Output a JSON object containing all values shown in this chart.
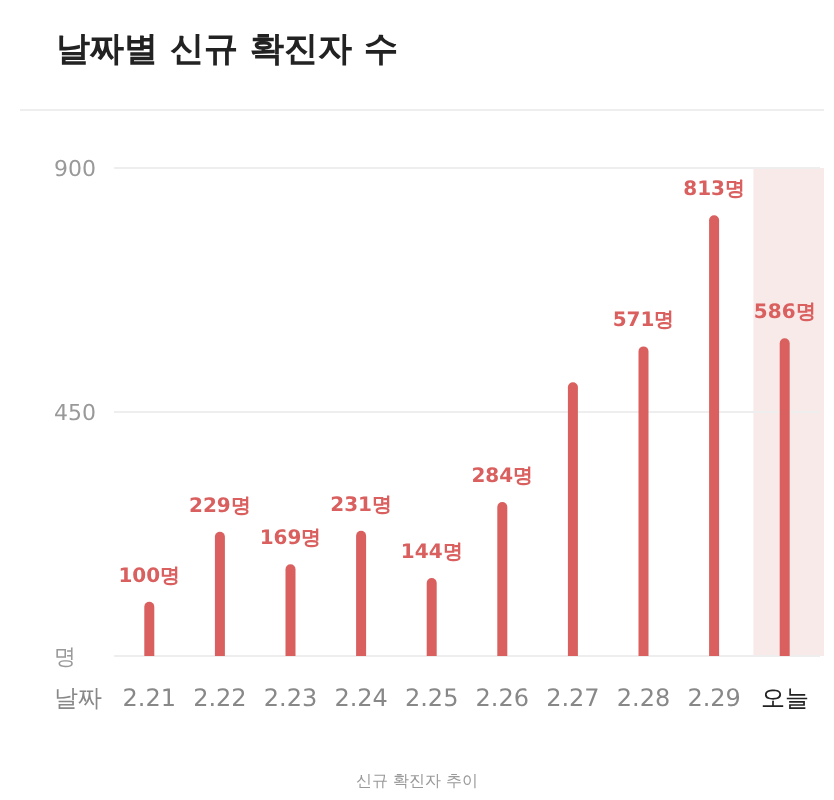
{
  "chart_data": {
    "type": "bar",
    "title": "날짜별 신규 확진자 수",
    "xlabel": "날짜",
    "categories": [
      "2.21",
      "2.22",
      "2.23",
      "2.24",
      "2.25",
      "2.26",
      "2.27",
      "2.28",
      "2.29",
      "오늘"
    ],
    "values": [
      100,
      229,
      169,
      231,
      144,
      284,
      505,
      571,
      813,
      586
    ],
    "value_labels": [
      "100명",
      "229명",
      "169명",
      "231명",
      "144명",
      "284명",
      null,
      "571명",
      "813명",
      "586명"
    ],
    "color": "#d9605f",
    "ylim": [
      0,
      900
    ],
    "yticks": [
      {
        "value": 0,
        "label": "명"
      },
      450,
      900
    ],
    "grid": "y",
    "bands": [
      {
        "axis": "x",
        "from": "오늘",
        "to": "오늘",
        "color": "#f9eaea"
      }
    ],
    "annotations": [
      "신규 확진자 추이"
    ]
  }
}
